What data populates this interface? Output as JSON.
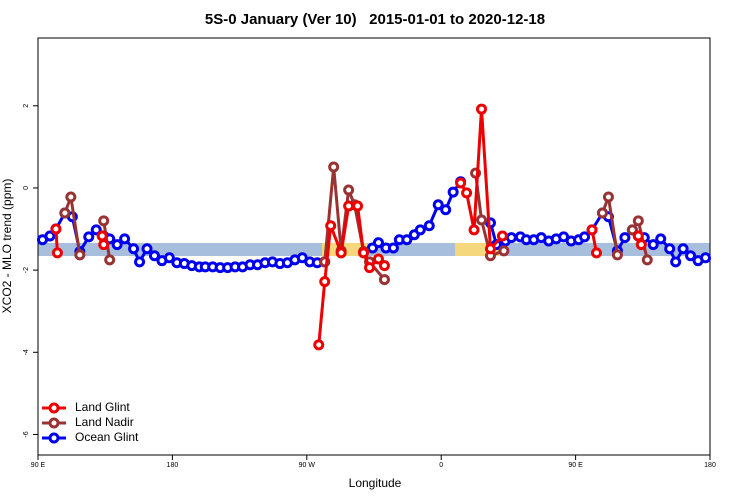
{
  "chart_data": {
    "type": "line",
    "title": "5S-0 January (Ver 10)   2015-01-01 to 2020-12-18",
    "xlabel": "Longitude",
    "ylabel": "XCO2 - MLO trend (ppm)",
    "xlim": [
      90,
      540
    ],
    "xticks": [
      {
        "value": 90,
        "label": "90 E"
      },
      180,
      {
        "value": 270,
        "label": "90 W"
      },
      {
        "value": 360,
        "label": "0"
      },
      {
        "value": 450,
        "label": "90 E"
      },
      {
        "value": 540,
        "label": "180"
      }
    ],
    "ylim": [
      -6.5,
      3.65
    ],
    "yticks": [
      2,
      0,
      -2,
      -4,
      -6
    ],
    "legend": "bottom-left",
    "series": [
      {
        "name": "Ocean Glint",
        "color": "#0000ee",
        "x": [
          93,
          98,
          102,
          108,
          113,
          118,
          124,
          129,
          134,
          138,
          143,
          148,
          154,
          158,
          163,
          168,
          173,
          178,
          183,
          188,
          193,
          198,
          202,
          207,
          212,
          217,
          222,
          227,
          232,
          237,
          242,
          247,
          252,
          257,
          262,
          267,
          272,
          277,
          282,
          300,
          314,
          318,
          323,
          328,
          332,
          337,
          342,
          346,
          352,
          358,
          363,
          368,
          373,
          383,
          393,
          397,
          403,
          407,
          413,
          417,
          422,
          427,
          432,
          437,
          442,
          447,
          452,
          456,
          461,
          468,
          472,
          478,
          483,
          488,
          492,
          496,
          502,
          507,
          513,
          517,
          522,
          527,
          532,
          537
        ],
        "values": [
          -1.26,
          -1.17,
          -1.0,
          -0.61,
          -0.7,
          -1.55,
          -1.19,
          -1.02,
          -1.17,
          -1.24,
          -1.38,
          -1.24,
          -1.48,
          -1.8,
          -1.48,
          -1.65,
          -1.77,
          -1.7,
          -1.82,
          -1.84,
          -1.89,
          -1.92,
          -1.92,
          -1.92,
          -1.94,
          -1.94,
          -1.92,
          -1.92,
          -1.87,
          -1.87,
          -1.82,
          -1.8,
          -1.84,
          -1.82,
          -1.75,
          -1.7,
          -1.8,
          -1.82,
          -1.8,
          null,
          -1.46,
          -1.33,
          -1.46,
          -1.46,
          -1.26,
          -1.26,
          -1.14,
          -1.02,
          -0.92,
          -0.41,
          -0.53,
          -0.1,
          0.15,
          null,
          -0.85,
          -1.38,
          -1.29,
          -1.21,
          -1.19,
          -1.26,
          -1.26,
          -1.21,
          -1.29,
          -1.24,
          -1.19,
          -1.29,
          -1.26,
          -1.19,
          -1.02,
          -0.61,
          -0.7,
          -1.53,
          -1.21,
          -1.02,
          -1.17,
          -1.21,
          -1.38,
          -1.24,
          -1.48,
          -1.8,
          -1.48,
          -1.65,
          -1.77,
          -1.7
        ]
      },
      {
        "name": "Land Nadir",
        "color": "#993333",
        "x": [
          108,
          112,
          118,
          125,
          134,
          138,
          200,
          282,
          288,
          293,
          298,
          302,
          308,
          312,
          322,
          350,
          383,
          387,
          393,
          402,
          420,
          468,
          472,
          478,
          485,
          488,
          492,
          498
        ],
        "values": [
          -0.61,
          -0.22,
          -1.63,
          null,
          -0.8,
          -1.75,
          null,
          -1.8,
          0.51,
          -1.53,
          -0.05,
          -0.41,
          -1.55,
          -1.8,
          -2.23,
          null,
          0.36,
          -0.78,
          -1.65,
          -1.53,
          null,
          -0.61,
          -0.22,
          -1.63,
          null,
          -1.02,
          -0.8,
          -1.75
        ]
      },
      {
        "name": "Land Glint",
        "color": "#ee0000",
        "x": [
          102,
          103,
          120,
          133,
          134,
          200,
          278,
          282,
          286,
          293,
          298,
          304,
          308,
          312,
          318,
          322,
          350,
          373,
          377,
          382,
          387,
          393,
          401,
          420,
          461,
          464,
          480,
          492,
          494
        ],
        "values": [
          -1.0,
          -1.58,
          null,
          -1.17,
          -1.38,
          null,
          -3.82,
          -2.28,
          -0.92,
          -1.58,
          -0.44,
          -0.44,
          -1.58,
          -1.94,
          -1.73,
          -1.89,
          null,
          0.12,
          -0.12,
          -1.02,
          1.92,
          -1.48,
          -1.17,
          null,
          -1.02,
          -1.58,
          null,
          -1.17,
          -1.38
        ]
      }
    ]
  }
}
